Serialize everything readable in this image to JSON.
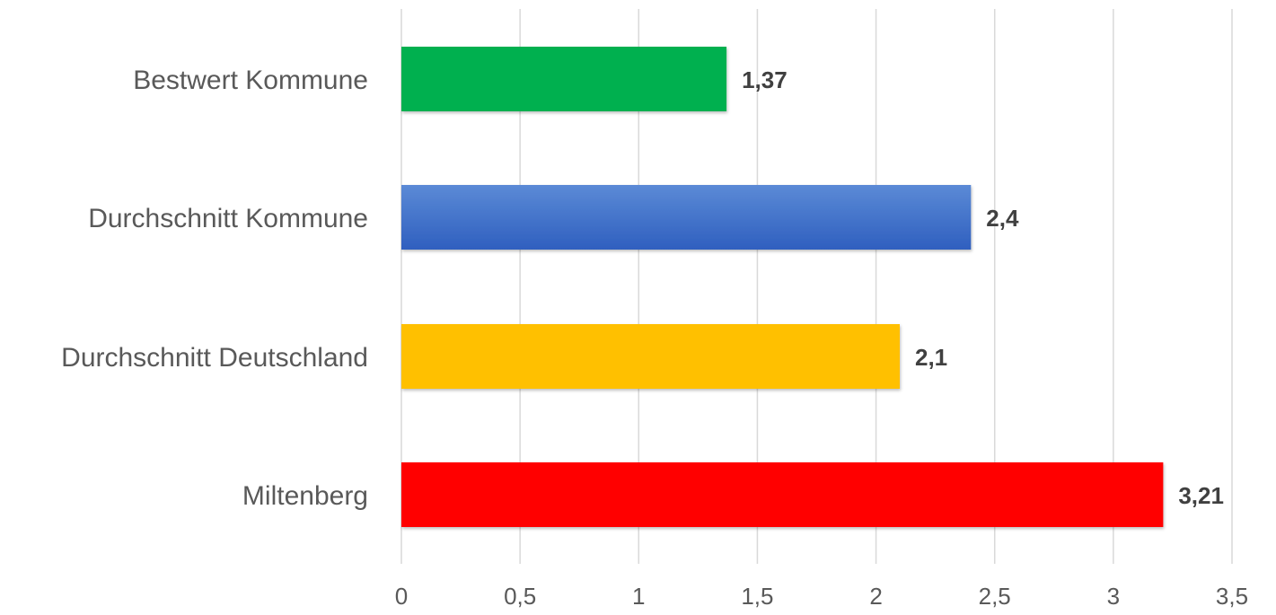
{
  "chart_data": {
    "type": "bar",
    "orientation": "horizontal",
    "categories": [
      "Bestwert Kommune",
      "Durchschnitt Kommune",
      "Durchschnitt Deutschland",
      "Miltenberg"
    ],
    "values": [
      1.37,
      2.4,
      2.1,
      3.21
    ],
    "value_labels": [
      "1,37",
      "2,4",
      "2,1",
      "3,21"
    ],
    "bar_colors": [
      "#00b050",
      "#4472c4",
      "#ffc000",
      "#ff0000"
    ],
    "xlim": [
      0,
      3.5
    ],
    "xticks": [
      0,
      0.5,
      1,
      1.5,
      2,
      2.5,
      3,
      3.5
    ],
    "xtick_labels": [
      "0",
      "0,5",
      "1",
      "1,5",
      "2",
      "2,5",
      "3",
      "3,5"
    ],
    "grid": true,
    "legend": "none",
    "title": "",
    "xlabel": "",
    "ylabel": ""
  }
}
